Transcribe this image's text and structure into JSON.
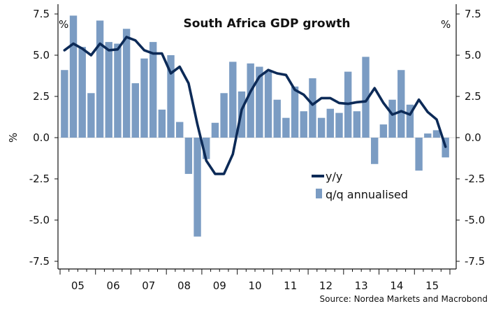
{
  "chart_data": {
    "type": "bar+line",
    "title": "South Africa GDP growth",
    "ylabel_left": "%",
    "unit_left": "%",
    "unit_right": "%",
    "ylim": [
      -7.5,
      7.5
    ],
    "yticks": [
      7.5,
      5.0,
      2.5,
      0.0,
      -2.5,
      -5.0,
      -7.5
    ],
    "ytick_labels": [
      "7.5",
      "5.0",
      "2.5",
      "0.0",
      "-2.5",
      "-5.0",
      "-7.5"
    ],
    "xtick_labels": [
      "05",
      "06",
      "07",
      "08",
      "09",
      "10",
      "11",
      "12",
      "13",
      "14",
      "15"
    ],
    "quarters": [
      "2005Q1",
      "2005Q2",
      "2005Q3",
      "2005Q4",
      "2006Q1",
      "2006Q2",
      "2006Q3",
      "2006Q4",
      "2007Q1",
      "2007Q2",
      "2007Q3",
      "2007Q4",
      "2008Q1",
      "2008Q2",
      "2008Q3",
      "2008Q4",
      "2009Q1",
      "2009Q2",
      "2009Q3",
      "2009Q4",
      "2010Q1",
      "2010Q2",
      "2010Q3",
      "2010Q4",
      "2011Q1",
      "2011Q2",
      "2011Q3",
      "2011Q4",
      "2012Q1",
      "2012Q2",
      "2012Q3",
      "2012Q4",
      "2013Q1",
      "2013Q2",
      "2013Q3",
      "2013Q4",
      "2014Q1",
      "2014Q2",
      "2014Q3",
      "2014Q4",
      "2015Q1",
      "2015Q2",
      "2015Q3",
      "2015Q4"
    ],
    "series": [
      {
        "name": "q/q annualised",
        "kind": "bar",
        "color": "#7b9cc3",
        "values": [
          4.1,
          7.4,
          5.5,
          2.7,
          7.1,
          5.8,
          5.7,
          6.6,
          3.3,
          4.8,
          5.8,
          1.7,
          5.0,
          0.95,
          -2.2,
          -6.0,
          -1.3,
          0.9,
          2.7,
          4.6,
          2.8,
          4.5,
          4.3,
          4.0,
          2.3,
          1.2,
          3.1,
          1.6,
          3.6,
          1.2,
          1.75,
          1.5,
          4.0,
          1.6,
          4.9,
          -1.6,
          0.8,
          2.3,
          4.1,
          2.0,
          -2.0,
          0.25,
          0.45,
          -1.2
        ]
      },
      {
        "name": "y/y",
        "kind": "line",
        "color": "#0c2a57",
        "values": [
          5.3,
          5.7,
          5.4,
          5.0,
          5.7,
          5.3,
          5.35,
          6.1,
          5.9,
          5.3,
          5.1,
          5.1,
          3.9,
          4.3,
          3.3,
          0.8,
          -1.4,
          -2.2,
          -2.2,
          -1.0,
          1.7,
          2.8,
          3.7,
          4.1,
          3.9,
          3.8,
          2.9,
          2.6,
          2.0,
          2.4,
          2.4,
          2.1,
          2.05,
          2.15,
          2.2,
          3.0,
          2.1,
          1.4,
          1.6,
          1.4,
          2.3,
          1.55,
          1.1,
          -0.55
        ]
      }
    ],
    "legend": [
      {
        "label": "y/y",
        "style": "line"
      },
      {
        "label": "q/q annualised",
        "style": "bar"
      }
    ],
    "legend_position": "lower-middle",
    "source": "Source: Nordea Markets and Macrobond"
  }
}
